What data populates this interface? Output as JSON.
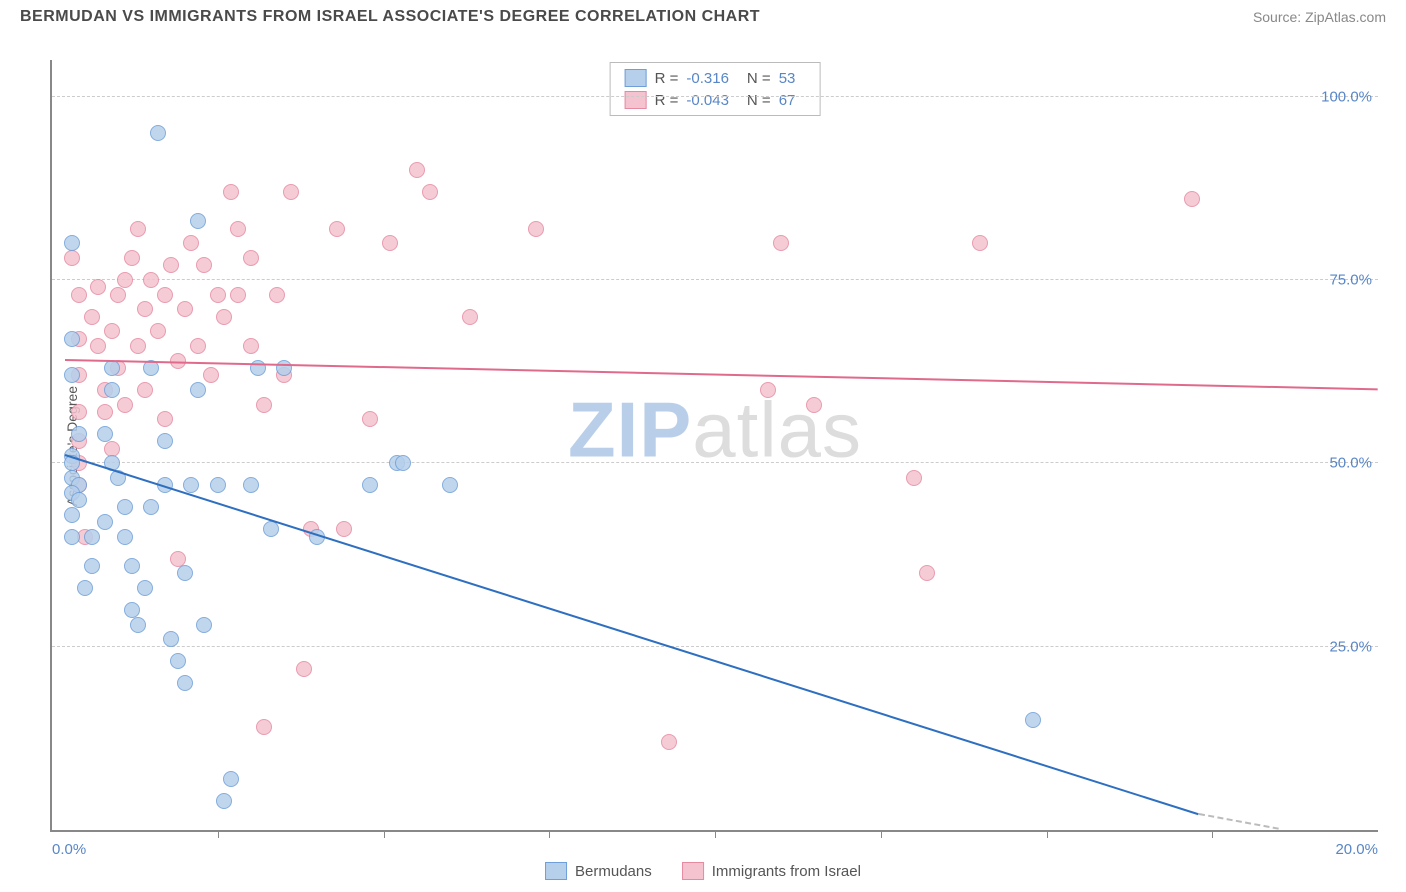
{
  "header": {
    "title": "BERMUDAN VS IMMIGRANTS FROM ISRAEL ASSOCIATE'S DEGREE CORRELATION CHART",
    "source": "Source: ZipAtlas.com"
  },
  "chart": {
    "type": "scatter",
    "ylabel": "Associate's Degree",
    "xlim": [
      0,
      20
    ],
    "ylim": [
      0,
      105
    ],
    "xtick_labels": {
      "min": "0.0%",
      "max": "20.0%"
    },
    "xtick_positions": [
      2.5,
      5.0,
      7.5,
      10.0,
      12.5,
      15.0,
      17.5
    ],
    "ytick_labels": [
      "25.0%",
      "50.0%",
      "75.0%",
      "100.0%"
    ],
    "ytick_positions": [
      25,
      50,
      75,
      100
    ],
    "grid_color": "#cccccc",
    "background_color": "#ffffff",
    "point_radius": 8,
    "series": {
      "bermudans": {
        "label": "Bermudans",
        "fill": "#b6cfeb",
        "stroke": "#6f9fd8",
        "R": "-0.316",
        "N": "53",
        "trend": {
          "x1": 0.2,
          "y1": 51,
          "x2": 17.3,
          "y2": 2,
          "color": "#2e6fc0"
        },
        "dashed_ext": {
          "x1": 17.3,
          "y1": 2,
          "x2": 18.5,
          "y2": 0
        },
        "points": [
          [
            0.3,
            80
          ],
          [
            0.3,
            67
          ],
          [
            0.3,
            62
          ],
          [
            0.4,
            54
          ],
          [
            0.3,
            51
          ],
          [
            0.3,
            50
          ],
          [
            0.3,
            48
          ],
          [
            0.4,
            47
          ],
          [
            0.3,
            46
          ],
          [
            0.4,
            45
          ],
          [
            0.3,
            43
          ],
          [
            0.3,
            40
          ],
          [
            0.6,
            40
          ],
          [
            0.6,
            36
          ],
          [
            0.5,
            33
          ],
          [
            0.8,
            42
          ],
          [
            0.9,
            50
          ],
          [
            0.8,
            54
          ],
          [
            0.9,
            60
          ],
          [
            0.9,
            63
          ],
          [
            1.0,
            48
          ],
          [
            1.1,
            44
          ],
          [
            1.1,
            40
          ],
          [
            1.2,
            36
          ],
          [
            1.2,
            30
          ],
          [
            1.3,
            28
          ],
          [
            1.4,
            33
          ],
          [
            1.5,
            44
          ],
          [
            1.5,
            63
          ],
          [
            1.6,
            95
          ],
          [
            1.7,
            53
          ],
          [
            1.7,
            47
          ],
          [
            1.8,
            26
          ],
          [
            1.9,
            23
          ],
          [
            2.0,
            20
          ],
          [
            2.0,
            35
          ],
          [
            2.1,
            47
          ],
          [
            2.2,
            60
          ],
          [
            2.2,
            83
          ],
          [
            2.3,
            28
          ],
          [
            2.5,
            47
          ],
          [
            2.6,
            4
          ],
          [
            2.7,
            7
          ],
          [
            3.0,
            47
          ],
          [
            3.1,
            63
          ],
          [
            3.3,
            41
          ],
          [
            3.5,
            63
          ],
          [
            4.0,
            40
          ],
          [
            4.8,
            47
          ],
          [
            5.2,
            50
          ],
          [
            5.3,
            50
          ],
          [
            6.0,
            47
          ],
          [
            14.8,
            15
          ]
        ]
      },
      "israel": {
        "label": "Immigrants from Israel",
        "fill": "#f4c3cf",
        "stroke": "#e68aa2",
        "R": "-0.043",
        "N": "67",
        "trend": {
          "x1": 0.2,
          "y1": 64,
          "x2": 20,
          "y2": 60,
          "color": "#e06a8c"
        },
        "points": [
          [
            0.3,
            78
          ],
          [
            0.4,
            73
          ],
          [
            0.4,
            67
          ],
          [
            0.4,
            62
          ],
          [
            0.4,
            57
          ],
          [
            0.4,
            53
          ],
          [
            0.4,
            50
          ],
          [
            0.4,
            47
          ],
          [
            0.5,
            40
          ],
          [
            0.6,
            70
          ],
          [
            0.7,
            66
          ],
          [
            0.7,
            74
          ],
          [
            0.8,
            60
          ],
          [
            0.8,
            57
          ],
          [
            0.9,
            52
          ],
          [
            0.9,
            68
          ],
          [
            1.0,
            73
          ],
          [
            1.0,
            63
          ],
          [
            1.1,
            75
          ],
          [
            1.1,
            58
          ],
          [
            1.2,
            78
          ],
          [
            1.3,
            66
          ],
          [
            1.3,
            82
          ],
          [
            1.4,
            71
          ],
          [
            1.4,
            60
          ],
          [
            1.5,
            75
          ],
          [
            1.6,
            68
          ],
          [
            1.7,
            73
          ],
          [
            1.7,
            56
          ],
          [
            1.8,
            77
          ],
          [
            1.9,
            64
          ],
          [
            1.9,
            37
          ],
          [
            2.0,
            71
          ],
          [
            2.1,
            80
          ],
          [
            2.2,
            66
          ],
          [
            2.3,
            77
          ],
          [
            2.4,
            62
          ],
          [
            2.5,
            73
          ],
          [
            2.6,
            70
          ],
          [
            2.7,
            87
          ],
          [
            2.8,
            82
          ],
          [
            2.8,
            73
          ],
          [
            3.0,
            66
          ],
          [
            3.0,
            78
          ],
          [
            3.2,
            14
          ],
          [
            3.2,
            58
          ],
          [
            3.4,
            73
          ],
          [
            3.5,
            62
          ],
          [
            3.6,
            87
          ],
          [
            3.8,
            22
          ],
          [
            3.9,
            41
          ],
          [
            4.3,
            82
          ],
          [
            4.4,
            41
          ],
          [
            4.8,
            56
          ],
          [
            5.1,
            80
          ],
          [
            5.5,
            90
          ],
          [
            5.7,
            87
          ],
          [
            6.3,
            70
          ],
          [
            7.3,
            82
          ],
          [
            9.3,
            12
          ],
          [
            10.8,
            60
          ],
          [
            11.0,
            80
          ],
          [
            11.5,
            58
          ],
          [
            13.0,
            48
          ],
          [
            13.2,
            35
          ],
          [
            14.0,
            80
          ],
          [
            17.2,
            86
          ]
        ]
      }
    }
  },
  "legend": {
    "R_label": "R =",
    "N_label": "N ="
  },
  "watermark": {
    "zip": "ZIP",
    "atlas": "atlas"
  }
}
